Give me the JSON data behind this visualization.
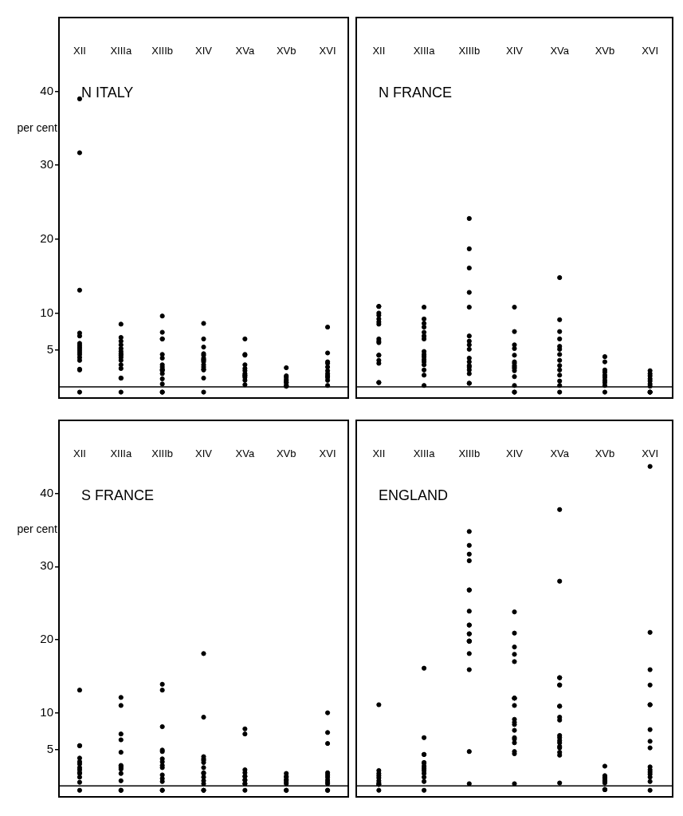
{
  "chart_data": [
    {
      "type": "scatter",
      "title": "N ITALY",
      "ylabel": "per cent",
      "categories": [
        "XII",
        "XIIIa",
        "XIIIb",
        "XIV",
        "XVa",
        "XVb",
        "XVI"
      ],
      "ylim": [
        -1.5,
        50
      ],
      "yticks": [
        5,
        10,
        20,
        30,
        40
      ],
      "marker": "circle",
      "ref_lines": [
        {
          "axis": "y",
          "value": 0
        }
      ],
      "series": [
        {
          "color": "#000000",
          "x": [
            "XII",
            "XII",
            "XII",
            "XII",
            "XII",
            "XII",
            "XII",
            "XII",
            "XII",
            "XII",
            "XII",
            "XII",
            "XII",
            "XII",
            "XII",
            "XII",
            "XIIIa",
            "XIIIa",
            "XIIIa",
            "XIIIa",
            "XIIIa",
            "XIIIa",
            "XIIIa",
            "XIIIa",
            "XIIIa",
            "XIIIa",
            "XIIIa",
            "XIIIa",
            "XIIIa",
            "XIIIa",
            "XIIIa",
            "XIIIb",
            "XIIIb",
            "XIIIb",
            "XIIIb",
            "XIIIb",
            "XIIIb",
            "XIIIb",
            "XIIIb",
            "XIIIb",
            "XIIIb",
            "XIIIb",
            "XIIIb",
            "XIIIb",
            "XIIIb",
            "XIIIb",
            "XIIIb",
            "XIV",
            "XIV",
            "XIV",
            "XIV",
            "XIV",
            "XIV",
            "XIV",
            "XIV",
            "XIV",
            "XIV",
            "XIV",
            "XIV",
            "XIV",
            "XIV",
            "XIV",
            "XVa",
            "XVa",
            "XVa",
            "XVa",
            "XVa",
            "XVa",
            "XVa",
            "XVa",
            "XVa",
            "XVa",
            "XVa",
            "XVa",
            "XVb",
            "XVb",
            "XVb",
            "XVb",
            "XVb",
            "XVb",
            "XVb",
            "XVb",
            "XVb",
            "XVb",
            "XVb",
            "XVI",
            "XVI",
            "XVI",
            "XVI",
            "XVI",
            "XVI",
            "XVI",
            "XVI",
            "XVI",
            "XVI",
            "XVI"
          ],
          "values": [
            39,
            31.7,
            13.1,
            7.3,
            6.9,
            5.9,
            5.6,
            5.3,
            5,
            4.7,
            4.4,
            4,
            3.6,
            2.4,
            2.3,
            -0.7,
            8.5,
            6.7,
            6.2,
            5.7,
            5.2,
            4.8,
            4.5,
            4.3,
            4,
            3.6,
            3,
            2.5,
            1.2,
            1.2,
            -0.7,
            9.6,
            7.4,
            6.5,
            6.5,
            4.4,
            3.9,
            3,
            2.7,
            2.4,
            2.3,
            2.2,
            1.8,
            1.1,
            0.4,
            -0.7,
            -0.7,
            8.6,
            6.5,
            5.4,
            4.5,
            4.3,
            3.9,
            3.7,
            3.6,
            3.4,
            3,
            2.7,
            2.4,
            2.3,
            1.2,
            -0.7,
            6.5,
            4.4,
            4.3,
            3,
            2.5,
            2.2,
            1.8,
            1.6,
            1.5,
            1.3,
            0.9,
            0.3,
            2.6,
            1.5,
            1.3,
            1,
            0.8,
            0.6,
            0.2,
            0.1,
            0.1,
            0.2,
            0.6,
            8.1,
            4.6,
            3.4,
            3.2,
            2.7,
            2.2,
            1.8,
            1.5,
            1.3,
            0.9,
            0.2
          ]
        }
      ]
    },
    {
      "type": "scatter",
      "title": "N FRANCE",
      "categories": [
        "XII",
        "XIIIa",
        "XIIIb",
        "XIV",
        "XVa",
        "XVb",
        "XVI"
      ],
      "ylim": [
        -1.5,
        50
      ],
      "yticks": [
        5,
        10,
        20,
        30,
        40
      ],
      "tick_labels": "x",
      "marker": "circle",
      "ref_lines": [
        {
          "axis": "y",
          "value": 0
        }
      ],
      "series": [
        {
          "color": "#000000",
          "x": [
            "XII",
            "XII",
            "XII",
            "XII",
            "XII",
            "XII",
            "XII",
            "XII",
            "XII",
            "XII",
            "XII",
            "XII",
            "XII",
            "XII",
            "XII",
            "XII",
            "XIIIa",
            "XIIIa",
            "XIIIa",
            "XIIIa",
            "XIIIa",
            "XIIIa",
            "XIIIa",
            "XIIIa",
            "XIIIa",
            "XIIIa",
            "XIIIa",
            "XIIIa",
            "XIIIa",
            "XIIIa",
            "XIIIa",
            "XIIIa",
            "XIIIb",
            "XIIIb",
            "XIIIb",
            "XIIIb",
            "XIIIb",
            "XIIIb",
            "XIIIb",
            "XIIIb",
            "XIIIb",
            "XIIIb",
            "XIIIb",
            "XIIIb",
            "XIIIb",
            "XIIIb",
            "XIIIb",
            "XIIIb",
            "XIIIb",
            "XIV",
            "XIV",
            "XIV",
            "XIV",
            "XIV",
            "XIV",
            "XIV",
            "XIV",
            "XIV",
            "XIV",
            "XIV",
            "XIV",
            "XIV",
            "XIV",
            "XIV",
            "XVa",
            "XVa",
            "XVa",
            "XVa",
            "XVa",
            "XVa",
            "XVa",
            "XVa",
            "XVa",
            "XVa",
            "XVa",
            "XVa",
            "XVa",
            "XVa",
            "XVb",
            "XVb",
            "XVb",
            "XVb",
            "XVb",
            "XVb",
            "XVb",
            "XVb",
            "XVb",
            "XVb",
            "XVI",
            "XVI",
            "XVI",
            "XVI",
            "XVI",
            "XVI",
            "XVI",
            "XVI",
            "XVI",
            "XVI"
          ],
          "values": [
            10.9,
            10.9,
            10,
            9.7,
            9.2,
            8.8,
            8.5,
            6.5,
            6.2,
            6,
            4.3,
            4.3,
            3.6,
            3.2,
            0.6,
            0.6,
            10.8,
            9.2,
            8.6,
            8.1,
            7.4,
            6.9,
            6.5,
            4.8,
            4.4,
            4.1,
            3.7,
            3.4,
            3,
            2.3,
            1.6,
            0.2,
            22.8,
            18.7,
            16.1,
            12.8,
            10.8,
            6.9,
            6.2,
            5.7,
            5.1,
            3.9,
            3.4,
            2.9,
            2.7,
            2.3,
            1.8,
            0.5,
            0.5,
            10.8,
            7.5,
            5.7,
            5.2,
            4.3,
            3.4,
            3.2,
            2.9,
            2.7,
            2.5,
            2.2,
            1.4,
            0.2,
            -0.7,
            -0.7,
            14.8,
            9.1,
            7.5,
            6.5,
            5.5,
            5.1,
            4.4,
            3.6,
            2.9,
            2.3,
            1.6,
            0.8,
            0.2,
            -0.7,
            4.1,
            3.4,
            2.3,
            2,
            1.6,
            1.3,
            0.9,
            0.6,
            0.2,
            -0.7,
            2.2,
            1.8,
            1.5,
            1.1,
            0.8,
            0.4,
            0.1,
            -0.7,
            -0.7,
            -0.7
          ]
        }
      ]
    },
    {
      "type": "scatter",
      "title": "S FRANCE",
      "ylabel": "per cent",
      "categories": [
        "XII",
        "XIIIa",
        "XIIIb",
        "XIV",
        "XVa",
        "XVb",
        "XVI"
      ],
      "ylim": [
        -1.5,
        50
      ],
      "yticks": [
        5,
        10,
        20,
        30,
        40
      ],
      "marker": "circle",
      "ref_lines": [
        {
          "axis": "y",
          "value": 0
        }
      ],
      "series": [
        {
          "color": "#000000",
          "x": [
            "XII",
            "XII",
            "XII",
            "XII",
            "XII",
            "XII",
            "XII",
            "XII",
            "XII",
            "XII",
            "XII",
            "XII",
            "XII",
            "XIIIa",
            "XIIIa",
            "XIIIa",
            "XIIIa",
            "XIIIa",
            "XIIIa",
            "XIIIa",
            "XIIIa",
            "XIIIa",
            "XIIIa",
            "XIIIa",
            "XIIIa",
            "XIIIa",
            "XIIIb",
            "XIIIb",
            "XIIIb",
            "XIIIb",
            "XIIIb",
            "XIIIb",
            "XIIIb",
            "XIIIb",
            "XIIIb",
            "XIIIb",
            "XIIIb",
            "XIIIb",
            "XIIIb",
            "XIIIb",
            "XIV",
            "XIV",
            "XIV",
            "XIV",
            "XIV",
            "XIV",
            "XIV",
            "XIV",
            "XIV",
            "XIV",
            "XIV",
            "XIV",
            "XIV",
            "XIV",
            "XVa",
            "XVa",
            "XVa",
            "XVa",
            "XVa",
            "XVa",
            "XVa",
            "XVa",
            "XVa",
            "XVa",
            "XVa",
            "XVb",
            "XVb",
            "XVb",
            "XVb",
            "XVb",
            "XVb",
            "XVb",
            "XVb",
            "XVb",
            "XVI",
            "XVI",
            "XVI",
            "XVI",
            "XVI",
            "XVI",
            "XVI",
            "XVI",
            "XVI",
            "XVI",
            "XVI"
          ],
          "values": [
            13.1,
            5.5,
            5.5,
            3.8,
            3.3,
            3,
            2.5,
            2.2,
            1.8,
            1.7,
            1.2,
            0.5,
            -0.6,
            12.1,
            11,
            7.1,
            6.3,
            4.6,
            2.8,
            2.7,
            2.5,
            2.3,
            1.7,
            0.7,
            -0.6,
            -0.6,
            13.9,
            13.1,
            8.1,
            4.9,
            4.7,
            3.7,
            3.3,
            2.8,
            2.5,
            1.5,
            1,
            0.6,
            -0.6,
            -0.6,
            18.1,
            9.4,
            4,
            3.7,
            3.5,
            3.2,
            2.5,
            1.8,
            1.7,
            1.2,
            0.7,
            0.3,
            -0.6,
            -0.6,
            7.8,
            7.1,
            2.2,
            1.8,
            1.3,
            1.3,
            0.8,
            0.8,
            0.3,
            0.3,
            -0.6,
            1.7,
            1.3,
            1.2,
            0.8,
            0.8,
            0.5,
            0.3,
            -0.6,
            -0.6,
            10,
            7.3,
            5.8,
            1.8,
            1.5,
            1.2,
            0.8,
            0.5,
            0.3,
            -0.6,
            -0.6
          ]
        }
      ]
    },
    {
      "type": "scatter",
      "title": "ENGLAND",
      "categories": [
        "XII",
        "XIIIa",
        "XIIIb",
        "XIV",
        "XVa",
        "XVb",
        "XVI"
      ],
      "ylim": [
        -1.5,
        50
      ],
      "yticks": [
        5,
        10,
        20,
        30,
        40
      ],
      "tick_labels": "x",
      "marker": "circle",
      "ref_lines": [
        {
          "axis": "y",
          "value": 0
        }
      ],
      "series": [
        {
          "color": "#000000",
          "x": [
            "XII",
            "XII",
            "XII",
            "XII",
            "XII",
            "XII",
            "XII",
            "XII",
            "XII",
            "XII",
            "XIIIa",
            "XIIIa",
            "XIIIa",
            "XIIIa",
            "XIIIa",
            "XIIIa",
            "XIIIa",
            "XIIIa",
            "XIIIa",
            "XIIIa",
            "XIIIa",
            "XIIIa",
            "XIIIa",
            "XIIIb",
            "XIIIb",
            "XIIIb",
            "XIIIb",
            "XIIIb",
            "XIIIb",
            "XIIIb",
            "XIIIb",
            "XIIIb",
            "XIIIb",
            "XIIIb",
            "XIIIb",
            "XIIIb",
            "XIIIb",
            "XIIIb",
            "XIIIb",
            "XIIIb",
            "XIIIb",
            "XIIIb",
            "XIV",
            "XIV",
            "XIV",
            "XIV",
            "XIV",
            "XIV",
            "XIV",
            "XIV",
            "XIV",
            "XIV",
            "XIV",
            "XIV",
            "XIV",
            "XIV",
            "XIV",
            "XIV",
            "XIV",
            "XIV",
            "XIV",
            "XVa",
            "XVa",
            "XVa",
            "XVa",
            "XVa",
            "XVa",
            "XVa",
            "XVa",
            "XVa",
            "XVa",
            "XVa",
            "XVa",
            "XVa",
            "XVa",
            "XVa",
            "XVa",
            "XVa",
            "XVa",
            "XVa",
            "XVb",
            "XVb",
            "XVb",
            "XVb",
            "XVb",
            "XVb",
            "XVb",
            "XVb",
            "XVb",
            "XVb",
            "XVb",
            "XVb",
            "XVI",
            "XVI",
            "XVI",
            "XVI",
            "XVI",
            "XVI",
            "XVI",
            "XVI",
            "XVI",
            "XVI",
            "XVI",
            "XVI",
            "XVI",
            "XVI",
            "XVI",
            "XVI"
          ],
          "values": [
            11.1,
            2.1,
            1.7,
            1.4,
            1.1,
            0.7,
            0.4,
            0.2,
            0.2,
            -0.6,
            16.1,
            6.6,
            4.3,
            4.3,
            3.2,
            3.1,
            2.7,
            2.4,
            2.1,
            1.7,
            1.2,
            0.6,
            -0.6,
            34.8,
            32.9,
            31.7,
            30.8,
            26.8,
            26.8,
            23.9,
            22,
            22,
            20.8,
            20.8,
            19.8,
            19.8,
            19.8,
            19.8,
            18.1,
            15.9,
            4.7,
            0.3,
            23.8,
            20.9,
            19,
            18,
            17,
            12,
            12,
            12,
            11,
            9.1,
            8.7,
            8.4,
            7.6,
            6.6,
            6.4,
            5.9,
            4.7,
            4.4,
            0.3,
            37.8,
            28,
            14.8,
            14.8,
            13.8,
            13.8,
            10.9,
            10.9,
            9.4,
            9,
            6.9,
            6.6,
            6.2,
            5.9,
            5.4,
            5.2,
            4.6,
            4.2,
            0.4,
            2.7,
            1.4,
            1.2,
            1.1,
            0.9,
            0.7,
            0.6,
            0.4,
            -0.5,
            -0.5,
            -0.5,
            -0.5,
            43.7,
            21,
            15.9,
            13.8,
            11.1,
            11.1,
            7.7,
            6.1,
            5.2,
            2.6,
            2.2,
            1.9,
            1.6,
            1.2,
            0.6,
            -0.6
          ]
        }
      ]
    }
  ]
}
